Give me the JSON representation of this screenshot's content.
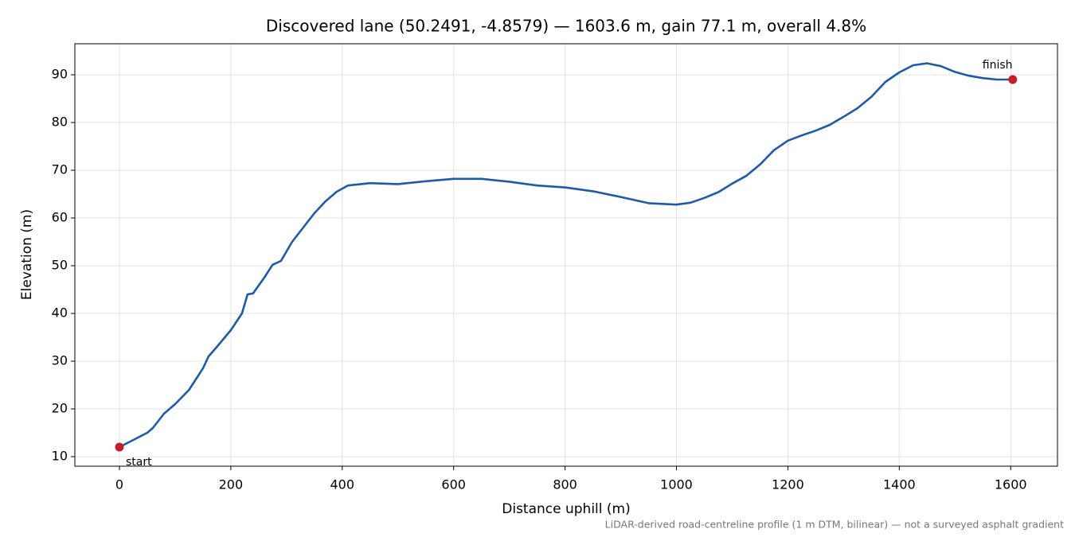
{
  "chart_data": {
    "type": "line",
    "title": "Discovered lane (50.2491, -4.8579) — 1603.6 m, gain 77.1 m, overall 4.8%",
    "x_label": "Distance uphill (m)",
    "y_label": "Elevation (m)",
    "footnote": "LiDAR-derived road-centreline profile (1 m DTM, bilinear) — not a surveyed asphalt gradient",
    "x": [
      0,
      25,
      50,
      60,
      80,
      100,
      125,
      150,
      160,
      175,
      200,
      220,
      230,
      240,
      260,
      275,
      290,
      310,
      330,
      350,
      370,
      390,
      410,
      450,
      500,
      550,
      600,
      650,
      700,
      750,
      800,
      850,
      900,
      950,
      1000,
      1025,
      1050,
      1075,
      1100,
      1125,
      1150,
      1175,
      1200,
      1225,
      1250,
      1275,
      1300,
      1325,
      1350,
      1375,
      1400,
      1425,
      1450,
      1475,
      1500,
      1525,
      1550,
      1575,
      1603.6
    ],
    "series": [
      {
        "color": "#1f5aa8",
        "values": [
          12,
          13.5,
          15,
          16,
          19,
          21,
          24,
          28.5,
          31,
          33,
          36.5,
          40,
          44,
          44.2,
          47.5,
          50.2,
          51,
          55,
          58,
          61,
          63.5,
          65.5,
          66.8,
          67.3,
          67.1,
          67.7,
          68.2,
          68.2,
          67.6,
          66.8,
          66.4,
          65.6,
          64.4,
          63.1,
          62.8,
          63.2,
          64.2,
          65.4,
          67.2,
          68.8,
          71.2,
          74.2,
          76.2,
          77.3,
          78.3,
          79.5,
          81.2,
          83,
          85.4,
          88.5,
          90.5,
          92,
          92.4,
          91.8,
          90.6,
          89.8,
          89.3,
          89,
          89
        ]
      }
    ],
    "markers": [
      {
        "label": "start",
        "x": 0,
        "y": 12
      },
      {
        "label": "finish",
        "x": 1603.6,
        "y": 89
      }
    ],
    "marker_color": "#c41e2a",
    "xlim": [
      -80,
      1684
    ],
    "ylim": [
      8,
      96.5
    ],
    "xticks": [
      0,
      200,
      400,
      600,
      800,
      1000,
      1200,
      1400,
      1600
    ],
    "yticks": [
      10,
      20,
      30,
      40,
      50,
      60,
      70,
      80,
      90
    ],
    "grid": true
  }
}
